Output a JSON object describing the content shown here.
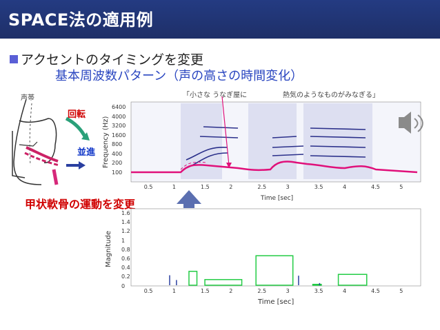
{
  "header": {
    "title": "SPACE法の適用例"
  },
  "bullet": {
    "text": "アクセントのタイミングを変更"
  },
  "subtitle": "基本周波数パターン（声の高さの時間変化）",
  "diagram": {
    "vocal_folds_label": "声帯",
    "rotation_label": "回転",
    "translation_label": "並進"
  },
  "caption_red": "甲状軟骨の運動を変更",
  "quote_left": "「小さな うなぎ屋に",
  "quote_right": "熱気のようなものがみなぎる」",
  "spectrogram": {
    "ylabel": "Frequency (Hz)",
    "yticks": [
      "6400",
      "4000",
      "3200",
      "1600",
      "800",
      "400",
      "200",
      "100"
    ],
    "xlabel": "Time [sec]",
    "xticks": [
      "0.5",
      "1",
      "1.5",
      "2",
      "2.5",
      "3",
      "3.5",
      "4",
      "4.5",
      "5"
    ]
  },
  "magnitude": {
    "ylabel": "Magnitude",
    "yticks": [
      "1.6",
      "1.4",
      "1.2",
      "1",
      "0.8",
      "0.6",
      "0.4",
      "0.2",
      "0"
    ],
    "xlabel": "Time [sec]",
    "xticks": [
      "0.5",
      "1",
      "1.5",
      "2",
      "2.5",
      "3",
      "3.5",
      "4",
      "4.5",
      "5"
    ]
  },
  "chart_data": {
    "type": "bar",
    "ylabel": "Magnitude",
    "xlabel": "Time [sec]",
    "ylim": [
      0,
      1.7
    ],
    "xlim": [
      0.2,
      5.3
    ],
    "series": [
      {
        "name": "",
        "color": "#22cc44",
        "boxes": [
          [
            1.22,
            1.36,
            0.32
          ],
          [
            1.5,
            2.15,
            0.13
          ],
          [
            2.4,
            3.05,
            0.68
          ],
          [
            3.4,
            3.55,
            0.02
          ],
          [
            3.85,
            4.35,
            0.25
          ]
        ]
      },
      {
        "name": "",
        "color": "#2a3fa0",
        "impulses": [
          [
            0.88,
            0.23
          ],
          [
            1.0,
            0.12
          ],
          [
            3.15,
            0.22
          ],
          [
            3.52,
            0.05
          ]
        ]
      }
    ]
  },
  "colors": {
    "header_bg": "#243b82",
    "subtitle": "#2a46c0",
    "accent_red": "#d00000",
    "f0_line": "#e0107a"
  },
  "icons": {
    "speaker": "speaker-icon",
    "arrow_up": "up-arrow-icon"
  }
}
